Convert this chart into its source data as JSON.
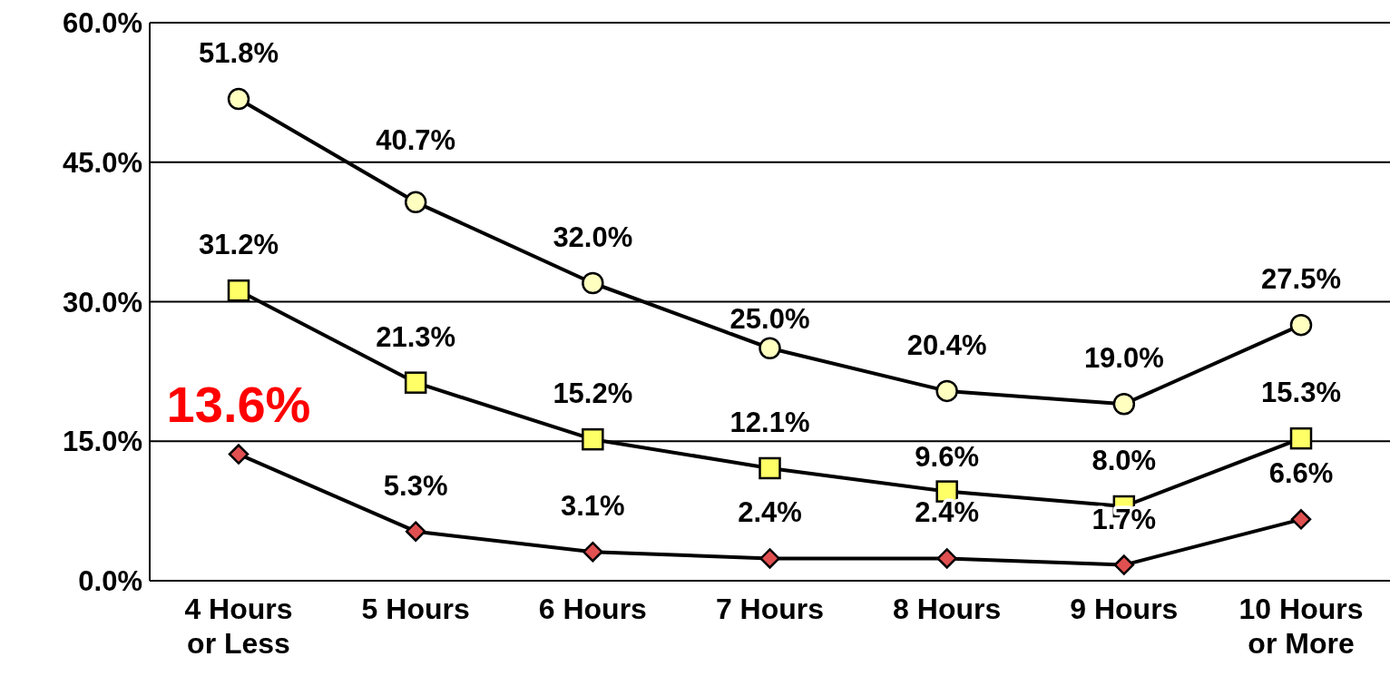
{
  "chart_data": {
    "type": "line",
    "categories": [
      "4 Hours or Less",
      "5 Hours",
      "6 Hours",
      "7 Hours",
      "8 Hours",
      "9 Hours",
      "10 Hours or More"
    ],
    "series": [
      {
        "color": "#ffffc0",
        "marker": "circle",
        "values": [
          51.8,
          40.7,
          32.0,
          25.0,
          20.4,
          19.0,
          27.5
        ],
        "value_labels": [
          "51.8%",
          "40.7%",
          "32.0%",
          "25.0%",
          "20.4%",
          "19.0%",
          "27.5%"
        ]
      },
      {
        "color": "#ffff66",
        "marker": "square",
        "values": [
          31.2,
          21.3,
          15.2,
          12.1,
          9.6,
          8.0,
          15.3
        ],
        "value_labels": [
          "31.2%",
          "21.3%",
          "15.2%",
          "12.1%",
          "9.6%",
          "8.0%",
          "15.3%"
        ]
      },
      {
        "color": "#e05050",
        "marker": "diamond",
        "values": [
          13.6,
          5.3,
          3.1,
          2.4,
          2.4,
          1.7,
          6.6
        ],
        "value_labels": [
          null,
          "5.3%",
          "3.1%",
          "2.4%",
          "2.4%",
          "1.7%",
          "6.6%"
        ]
      }
    ],
    "annotations": [
      {
        "text": "13.6%",
        "x": "4 Hours or Less",
        "y": 13.6
      }
    ],
    "ylim": [
      0,
      60
    ],
    "yticks": [
      {
        "value": 0,
        "label": "0.0%"
      },
      {
        "value": 15,
        "label": "15.0%"
      },
      {
        "value": 30,
        "label": "30.0%"
      },
      {
        "value": 45,
        "label": "45.0%"
      },
      {
        "value": 60,
        "label": "60.0%"
      }
    ],
    "grid": "y",
    "legend": false
  }
}
